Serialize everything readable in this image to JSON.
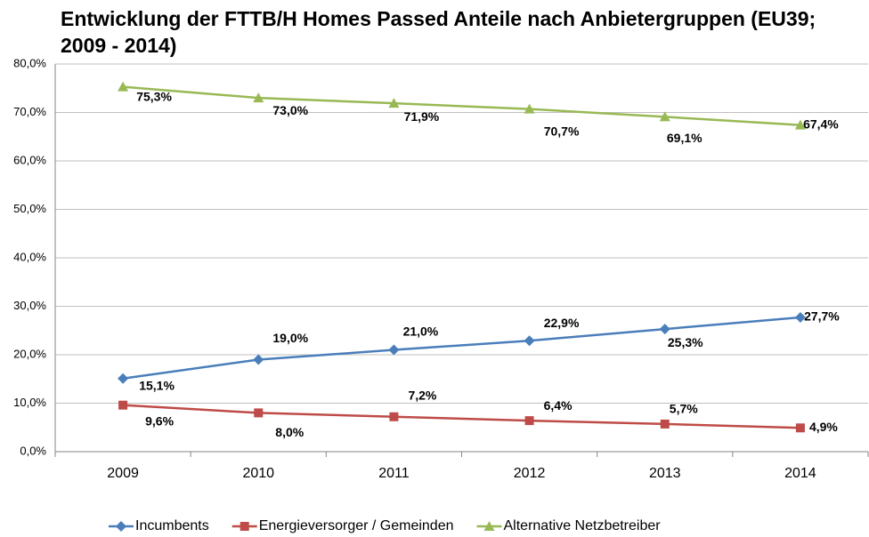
{
  "chart_data": {
    "type": "line",
    "title": "Entwicklung der FTTB/H Homes Passed Anteile nach Anbietergruppen (EU39; 2009 - 2014)",
    "categories": [
      "2009",
      "2010",
      "2011",
      "2012",
      "2013",
      "2014"
    ],
    "series": [
      {
        "name": "Incumbents",
        "color": "#4a7ebb",
        "marker": "diamond",
        "values": [
          15.1,
          19.0,
          21.0,
          22.9,
          25.3,
          27.7
        ],
        "value_labels": [
          "15,1%",
          "19,0%",
          "21,0%",
          "22,9%",
          "25,3%",
          "27,7%"
        ]
      },
      {
        "name": "Energieversorger / Gemeinden",
        "color": "#be4b48",
        "marker": "square",
        "values": [
          9.6,
          8.0,
          7.2,
          6.4,
          5.7,
          4.9
        ],
        "value_labels": [
          "9,6%",
          "8,0%",
          "7,2%",
          "6,4%",
          "5,7%",
          "4,9%"
        ]
      },
      {
        "name": "Alternative Netzbetreiber",
        "color": "#98b954",
        "marker": "triangle",
        "values": [
          75.3,
          73.0,
          71.9,
          70.7,
          69.1,
          67.4
        ],
        "value_labels": [
          "75,3%",
          "73,0%",
          "71,9%",
          "70,7%",
          "69,1%",
          "67,4%"
        ]
      }
    ],
    "ylim": [
      0,
      80
    ],
    "yticks": [
      {
        "value": 0,
        "label": "0,0%"
      },
      {
        "value": 10,
        "label": "10,0%"
      },
      {
        "value": 20,
        "label": "20,0%"
      },
      {
        "value": 30,
        "label": "30,0%"
      },
      {
        "value": 40,
        "label": "40,0%"
      },
      {
        "value": 50,
        "label": "50,0%"
      },
      {
        "value": 60,
        "label": "60,0%"
      },
      {
        "value": 70,
        "label": "70,0%"
      },
      {
        "value": 80,
        "label": "80,0%"
      }
    ],
    "grid": true,
    "legend": "bottom"
  }
}
